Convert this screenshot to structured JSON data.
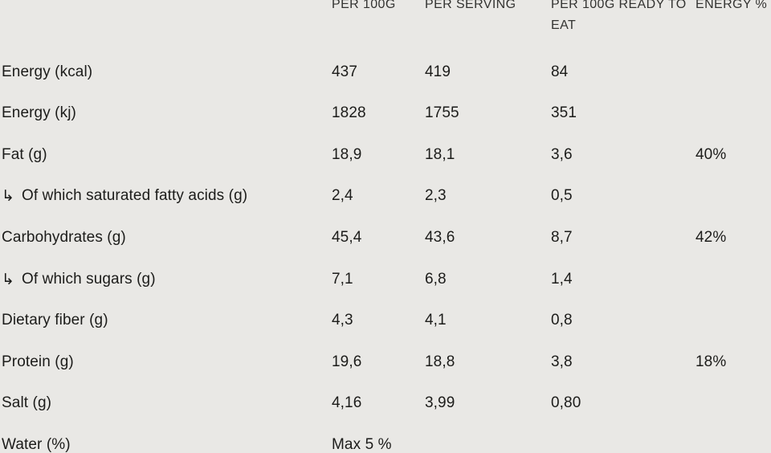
{
  "header": {
    "columns": [
      "PER 100G",
      "PER SERVING",
      "PER 100G READY TO EAT",
      "ENERGY %"
    ]
  },
  "rows": [
    {
      "prefix_icon": "",
      "label": "Energy (kcal)",
      "per_100g": "437",
      "per_serving": "419",
      "per_100g_ready": "84",
      "energy_pct": ""
    },
    {
      "prefix_icon": "",
      "label": "Energy (kj)",
      "per_100g": "1828",
      "per_serving": "1755",
      "per_100g_ready": "351",
      "energy_pct": ""
    },
    {
      "prefix_icon": "",
      "label": "Fat (g)",
      "per_100g": "18,9",
      "per_serving": "18,1",
      "per_100g_ready": "3,6",
      "energy_pct": "40%"
    },
    {
      "prefix_icon": "↳",
      "label": "Of which saturated fatty acids (g)",
      "per_100g": "2,4",
      "per_serving": "2,3",
      "per_100g_ready": "0,5",
      "energy_pct": ""
    },
    {
      "prefix_icon": "",
      "label": "Carbohydrates (g)",
      "per_100g": "45,4",
      "per_serving": "43,6",
      "per_100g_ready": "8,7",
      "energy_pct": "42%"
    },
    {
      "prefix_icon": "↳",
      "label": "Of which sugars (g)",
      "per_100g": "7,1",
      "per_serving": "6,8",
      "per_100g_ready": "1,4",
      "energy_pct": ""
    },
    {
      "prefix_icon": "",
      "label": "Dietary fiber (g)",
      "per_100g": "4,3",
      "per_serving": "4,1",
      "per_100g_ready": "0,8",
      "energy_pct": ""
    },
    {
      "prefix_icon": "",
      "label": "Protein (g)",
      "per_100g": "19,6",
      "per_serving": "18,8",
      "per_100g_ready": "3,8",
      "energy_pct": "18%"
    },
    {
      "prefix_icon": "",
      "label": "Salt (g)",
      "per_100g": "4,16",
      "per_serving": "3,99",
      "per_100g_ready": "0,80",
      "energy_pct": ""
    },
    {
      "prefix_icon": "",
      "label": "Water (%)",
      "per_100g": "Max 5 %",
      "per_serving": "",
      "per_100g_ready": "",
      "energy_pct": ""
    }
  ],
  "colors": {
    "background": "#e9e8e5",
    "body_text": "#1c1c1a",
    "header_text": "#333331"
  }
}
